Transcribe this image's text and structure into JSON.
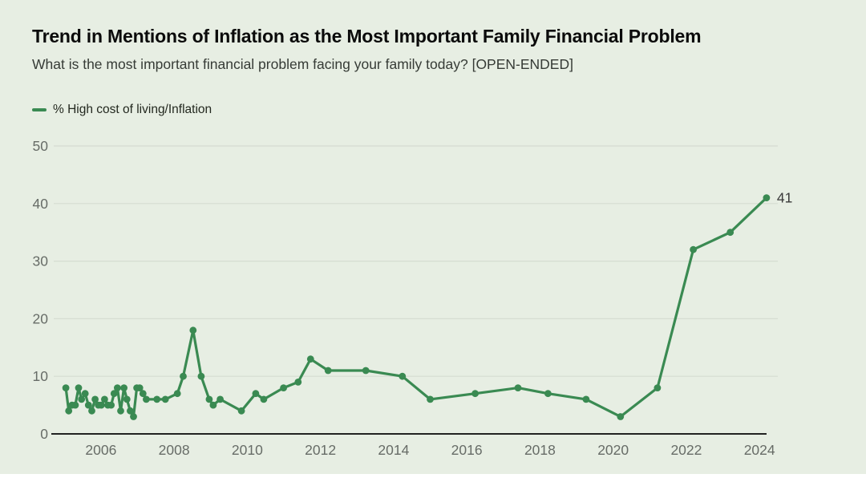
{
  "page": {
    "background_color": "#e7eee3"
  },
  "header": {
    "title": "Trend in Mentions of Inflation as the Most Important Family Financial Problem",
    "subtitle": "What is the most important financial problem facing your family today? [OPEN-ENDED]"
  },
  "legend": {
    "label": "% High cost of living/Inflation",
    "color": "#3a8a52"
  },
  "chart_data": {
    "type": "line",
    "title": "Trend in Mentions of Inflation as the Most Important Family Financial Problem",
    "subtitle": "What is the most important financial problem facing your family today? [OPEN-ENDED]",
    "xlabel": "",
    "ylabel": "",
    "x": [
      2005.04,
      2005.12,
      2005.21,
      2005.3,
      2005.39,
      2005.47,
      2005.57,
      2005.66,
      2005.75,
      2005.84,
      2005.93,
      2006.01,
      2006.1,
      2006.19,
      2006.28,
      2006.36,
      2006.45,
      2006.54,
      2006.63,
      2006.71,
      2006.8,
      2006.89,
      2006.98,
      2007.06,
      2007.15,
      2007.24,
      2007.53,
      2007.76,
      2008.09,
      2008.25,
      2008.52,
      2008.74,
      2008.96,
      2009.07,
      2009.26,
      2009.84,
      2010.23,
      2010.45,
      2010.99,
      2011.39,
      2011.73,
      2012.21,
      2013.24,
      2014.24,
      2015.0,
      2016.23,
      2017.4,
      2018.22,
      2019.26,
      2020.2,
      2021.21,
      2022.19,
      2023.2,
      2024.19
    ],
    "series": [
      {
        "name": "% High cost of living/Inflation",
        "color": "#3a8a52",
        "values": [
          8,
          4,
          5,
          5,
          8,
          6,
          7,
          5,
          4,
          6,
          5,
          5,
          6,
          5,
          5,
          7,
          8,
          4,
          8,
          6,
          4,
          3,
          8,
          8,
          7,
          6,
          6,
          6,
          7,
          10,
          18,
          10,
          6,
          5,
          6,
          4,
          7,
          6,
          8,
          9,
          13,
          11,
          11,
          10,
          6,
          7,
          8,
          7,
          6,
          3,
          8,
          32,
          35,
          41
        ]
      }
    ],
    "end_label": "41",
    "xticks": [
      2006,
      2008,
      2010,
      2012,
      2014,
      2016,
      2018,
      2020,
      2022,
      2024
    ],
    "yticks": [
      0,
      10,
      20,
      30,
      40,
      50
    ],
    "xlim": [
      2004.71,
      2024.5
    ],
    "ylim": [
      0,
      50
    ],
    "grid": "horizontal",
    "legend_position": "top-left",
    "colors": {
      "gridline": "#d6dcd2",
      "axis_line": "#222222",
      "tick_label": "#676c67",
      "end_label": "#3a3a3a"
    }
  }
}
